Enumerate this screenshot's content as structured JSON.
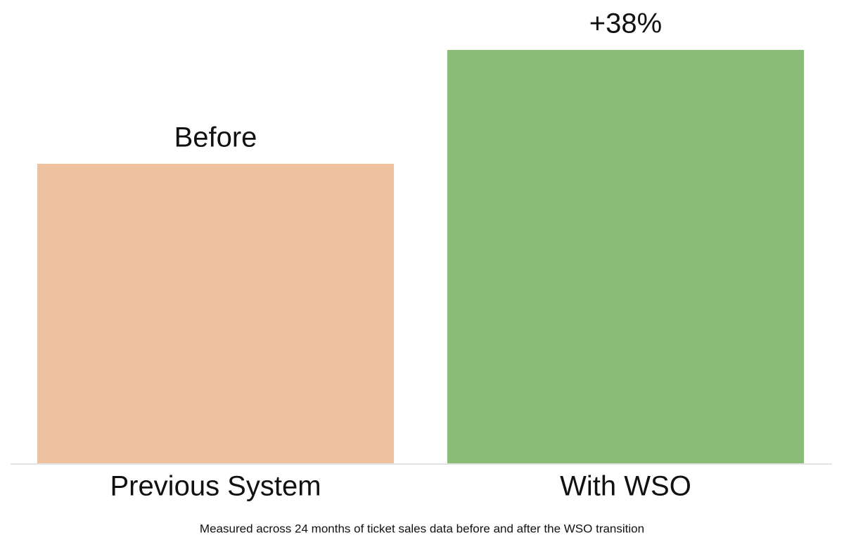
{
  "chart_data": {
    "type": "bar",
    "categories": [
      "Previous System",
      "With WSO"
    ],
    "values": [
      100,
      138
    ],
    "annotations": [
      "Before",
      "+38%"
    ],
    "colors": [
      "#eec29e",
      "#8bbd78"
    ],
    "ylim": [
      0,
      138
    ],
    "footnote": "Measured across 24 months of ticket sales data before and after the WSO transition"
  }
}
